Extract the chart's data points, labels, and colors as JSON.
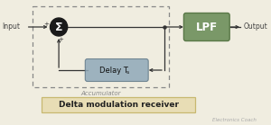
{
  "fig_bg": "#f0ede0",
  "title": "Delta modulation receiver",
  "title_box_color": "#e8ddb5",
  "title_box_edge": "#c8b870",
  "accumulator_label": "Accumulator",
  "delay_label": "Delay T",
  "delay_sub": "s",
  "lpf_label": "LPF",
  "input_label": "Input",
  "output_label": "Output",
  "sum_symbol": "Σ",
  "dashed_box_color": "#888888",
  "sum_circle_color": "#1a1a1a",
  "lpf_box_color_top": "#8aaa78",
  "lpf_box_color": "#7a9868",
  "lpf_edge_color": "#5a7848",
  "delay_box_color": "#8fa8b8",
  "delay_edge_color": "#607888",
  "wire_color": "#333333",
  "watermark": "Electronics Coach",
  "plus_color": "#333333",
  "acc_label_color": "#888888",
  "output_text_color": "#444444",
  "input_text_color": "#444444"
}
